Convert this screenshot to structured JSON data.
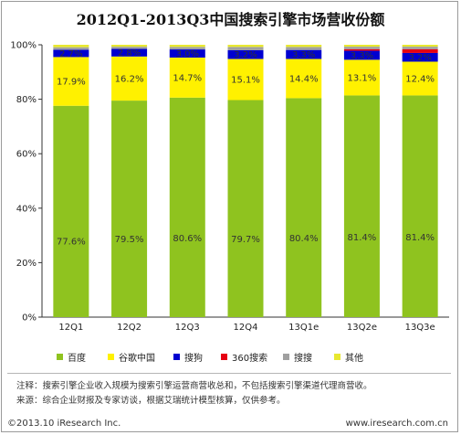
{
  "chart_data": {
    "type": "bar",
    "stacked": true,
    "title": "2012Q1-2013Q3中国搜索引擎市场营收份额",
    "categories": [
      "12Q1",
      "12Q2",
      "12Q3",
      "12Q4",
      "13Q1e",
      "13Q2e",
      "13Q3e"
    ],
    "y_ticks": [
      "0%",
      "20%",
      "40%",
      "60%",
      "80%",
      "100%"
    ],
    "ylim": [
      0,
      100
    ],
    "series": [
      {
        "name": "百度",
        "color": "#8fc31f",
        "values": [
          77.6,
          79.5,
          80.6,
          79.7,
          80.4,
          81.4,
          81.4
        ],
        "labels": [
          "77.6%",
          "79.5%",
          "80.6%",
          "79.7%",
          "80.4%",
          "81.4%",
          "81.4%"
        ]
      },
      {
        "name": "谷歌中国",
        "color": "#fff100",
        "values": [
          17.9,
          16.2,
          14.7,
          15.1,
          14.4,
          13.1,
          12.4
        ],
        "labels": [
          "17.9%",
          "16.2%",
          "14.7%",
          "15.1%",
          "14.4%",
          "13.1%",
          "12.4%"
        ]
      },
      {
        "name": "搜狗",
        "color": "#0000d0",
        "values": [
          2.7,
          2.8,
          3.0,
          3.2,
          3.3,
          3.3,
          3.2
        ],
        "labels": [
          "2.7%",
          "2.8%",
          "3.0%",
          "3.2%",
          "3.3%",
          "3.3%",
          "3.2%"
        ]
      },
      {
        "name": "360搜索",
        "color": "#e60012",
        "values": [
          0,
          0,
          0,
          0,
          0,
          0.6,
          1.4
        ],
        "labels": [
          "",
          "",
          "",
          "",
          "",
          "",
          ""
        ]
      },
      {
        "name": "搜搜",
        "color": "#a0a0a0",
        "values": [
          0.9,
          0.8,
          0.9,
          1.2,
          1.1,
          0.9,
          0.9
        ],
        "labels": [
          "",
          "",
          "",
          "",
          "",
          "",
          ""
        ]
      },
      {
        "name": "其他",
        "color": "#e8e830",
        "values": [
          0.9,
          0.7,
          0.8,
          0.8,
          0.8,
          0.7,
          0.7
        ],
        "labels": [
          "",
          "",
          "",
          "",
          "",
          "",
          ""
        ]
      }
    ],
    "legend_position": "bottom",
    "grid": false
  },
  "notes": {
    "line1": "注释：搜索引擎企业收入规模为搜索引擎运营商营收总和，不包括搜索引擎渠道代理商营收。",
    "line2": "来源：综合企业财报及专家访谈，根据艾瑞统计模型核算，仅供参考。"
  },
  "footer": {
    "copyright": "©2013.10 iResearch Inc.",
    "website": "www.iresearch.com.cn"
  }
}
